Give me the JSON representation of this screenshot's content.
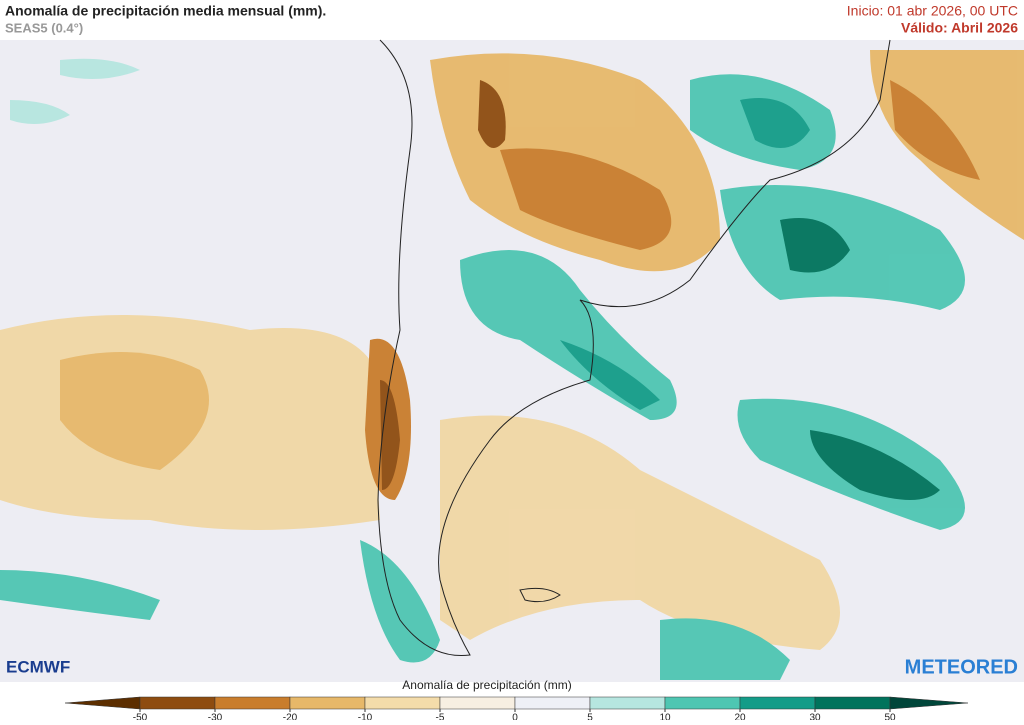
{
  "header": {
    "title": "Anomalía de precipitación media mensual (mm).",
    "subtitle": "SEAS5 (0.4°)",
    "init": "Inicio: 01 abr 2026, 00 UTC",
    "valid": "Válido: Abril 2026"
  },
  "logos": {
    "left": "ECMWF",
    "right": "METEORED"
  },
  "colorbar": {
    "title": "Anomalía de precipitación (mm)",
    "ticks": [
      -50,
      -30,
      -20,
      -10,
      -5,
      0,
      5,
      10,
      20,
      30,
      50
    ],
    "colors": [
      "#5c2e00",
      "#8e4c10",
      "#c97d2c",
      "#e7b869",
      "#f4dcaa",
      "#f7efe2",
      "#eef0f6",
      "#b6e6e0",
      "#4ec6b2",
      "#139c88",
      "#00735c",
      "#00463a"
    ]
  }
}
